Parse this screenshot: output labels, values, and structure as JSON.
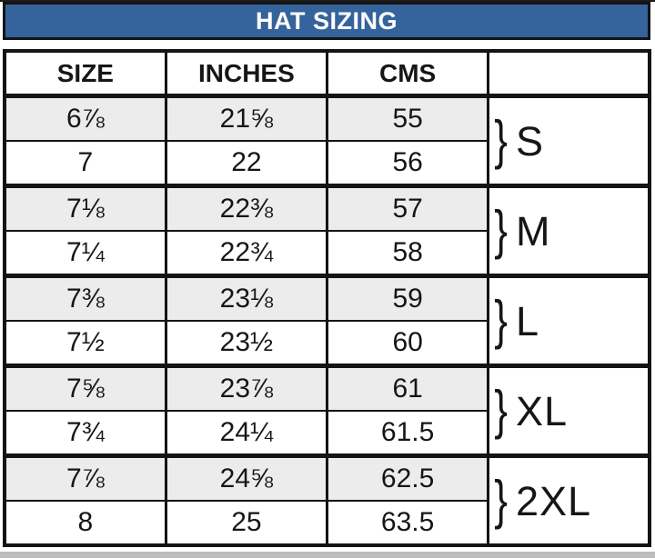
{
  "title": "HAT SIZING",
  "colors": {
    "title_bg": "#35639B",
    "title_text": "#FFFFFF",
    "shaded_row_bg": "#ECECEC",
    "border": "#141414"
  },
  "chart_data": {
    "type": "table",
    "title": "HAT SIZING",
    "columns": [
      "SIZE",
      "INCHES",
      "CMS",
      ""
    ],
    "rows": [
      {
        "size": "6⅞",
        "inches": "21⅝",
        "cms": "55"
      },
      {
        "size": "7",
        "inches": "22",
        "cms": "56"
      },
      {
        "size": "7⅛",
        "inches": "22⅜",
        "cms": "57"
      },
      {
        "size": "7¼",
        "inches": "22¾",
        "cms": "58"
      },
      {
        "size": "7⅜",
        "inches": "23⅛",
        "cms": "59"
      },
      {
        "size": "7½",
        "inches": "23½",
        "cms": "60"
      },
      {
        "size": "7⅝",
        "inches": "23⅞",
        "cms": "61"
      },
      {
        "size": "7¾",
        "inches": "24¼",
        "cms": "61.5"
      },
      {
        "size": "7⅞",
        "inches": "24⅝",
        "cms": "62.5"
      },
      {
        "size": "8",
        "inches": "25",
        "cms": "63.5"
      }
    ],
    "groups": [
      {
        "brace": "}",
        "label": "S",
        "row_span": 2
      },
      {
        "brace": "}",
        "label": "M",
        "row_span": 2
      },
      {
        "brace": "}",
        "label": "L",
        "row_span": 2
      },
      {
        "brace": "}",
        "label": "XL",
        "row_span": 2
      },
      {
        "brace": "}",
        "label": "2XL",
        "row_span": 2
      }
    ]
  }
}
